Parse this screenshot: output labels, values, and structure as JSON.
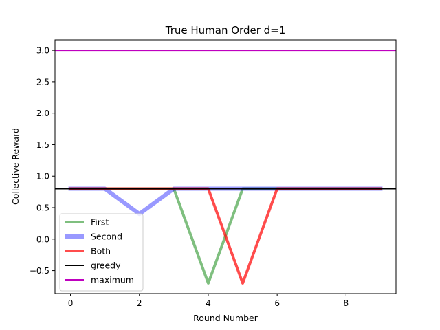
{
  "chart_data": {
    "type": "line",
    "title": "True Human Order d=1",
    "xlabel": "Round Number",
    "ylabel": "Collective Reward",
    "xlim": [
      -0.45,
      9.45
    ],
    "ylim": [
      -0.865,
      3.165
    ],
    "xticks": [
      0,
      2,
      4,
      6,
      8
    ],
    "xtick_labels": [
      "0",
      "2",
      "4",
      "6",
      "8"
    ],
    "yticks": [
      -0.5,
      0.0,
      0.5,
      1.0,
      1.5,
      2.0,
      2.5,
      3.0
    ],
    "ytick_labels": [
      "−0.5",
      "0.0",
      "0.5",
      "1.0",
      "1.5",
      "2.0",
      "2.5",
      "3.0"
    ],
    "grid": false,
    "legend_position": "lower-left",
    "series": [
      {
        "name": "First",
        "color": "#008000",
        "opacity": 0.5,
        "width": 4,
        "x": [
          0,
          1,
          2,
          3,
          4,
          5,
          6,
          7,
          8,
          9
        ],
        "y": [
          0.8,
          0.8,
          0.8,
          0.8,
          -0.7,
          0.8,
          0.8,
          0.8,
          0.8,
          0.8
        ]
      },
      {
        "name": "Second",
        "color": "#0000ff",
        "opacity": 0.4,
        "width": 6,
        "x": [
          0,
          1,
          2,
          3,
          4,
          5,
          6,
          7,
          8,
          9
        ],
        "y": [
          0.8,
          0.8,
          0.4,
          0.8,
          0.8,
          0.8,
          0.8,
          0.8,
          0.8,
          0.8
        ]
      },
      {
        "name": "Both",
        "color": "#ff0000",
        "opacity": 0.7,
        "width": 4,
        "x": [
          0,
          1,
          2,
          3,
          4,
          5,
          6,
          7,
          8,
          9
        ],
        "y": [
          0.8,
          0.8,
          0.8,
          0.8,
          0.8,
          -0.7,
          0.8,
          0.8,
          0.8,
          0.8
        ]
      }
    ],
    "hlines": [
      {
        "name": "greedy",
        "y": 0.8,
        "color": "#000000",
        "width": 2
      },
      {
        "name": "maximum",
        "y": 3.0,
        "color": "#bf00bf",
        "width": 2
      }
    ]
  }
}
